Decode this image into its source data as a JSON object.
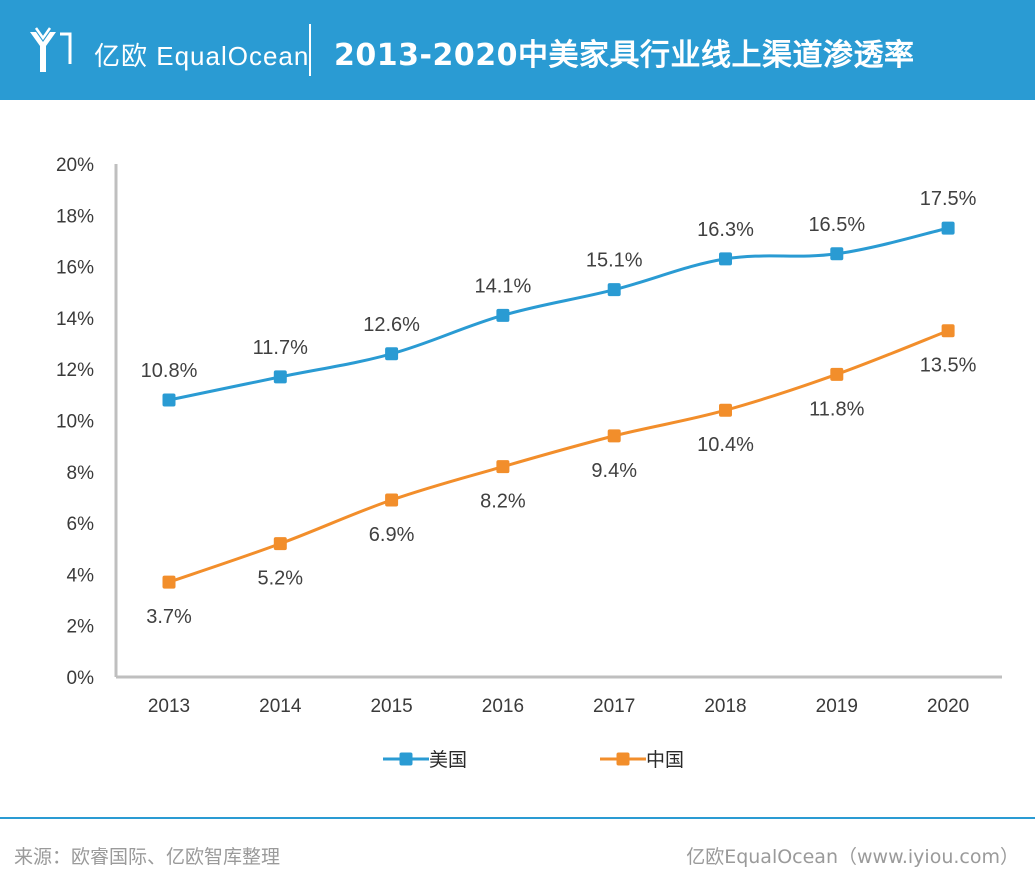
{
  "header": {
    "logo_text": "亿欧 EqualOcean",
    "title": "2013-2020中美家具行业线上渠道渗透率",
    "background": "#2a9bd3"
  },
  "chart_data": {
    "type": "line",
    "title": "2013-2020中美家具行业线上渠道渗透率",
    "categories": [
      "2013",
      "2014",
      "2015",
      "2016",
      "2017",
      "2018",
      "2019",
      "2020"
    ],
    "series": [
      {
        "name": "美国",
        "color": "#2a9bd3",
        "values": [
          10.8,
          11.7,
          12.6,
          14.1,
          15.1,
          16.3,
          16.5,
          17.5
        ],
        "labels": [
          "10.8%",
          "11.7%",
          "12.6%",
          "14.1%",
          "15.1%",
          "16.3%",
          "16.5%",
          "17.5%"
        ],
        "label_position": "above"
      },
      {
        "name": "中国",
        "color": "#f28e2b",
        "values": [
          3.7,
          5.2,
          6.9,
          8.2,
          9.4,
          10.4,
          11.8,
          13.5
        ],
        "labels": [
          "3.7%",
          "5.2%",
          "6.9%",
          "8.2%",
          "9.4%",
          "10.4%",
          "11.8%",
          "13.5%"
        ],
        "label_position": "below"
      }
    ],
    "ylim": [
      0,
      20
    ],
    "yticks": [
      "0%",
      "2%",
      "4%",
      "6%",
      "8%",
      "10%",
      "12%",
      "14%",
      "16%",
      "18%",
      "20%"
    ],
    "xlabel": "",
    "ylabel": "",
    "grid": false,
    "legend_position": "bottom-center"
  },
  "footer": {
    "source": "来源：欧睿国际、亿欧智库整理",
    "credit": "亿欧EqualOcean（www.iyiou.com）"
  }
}
